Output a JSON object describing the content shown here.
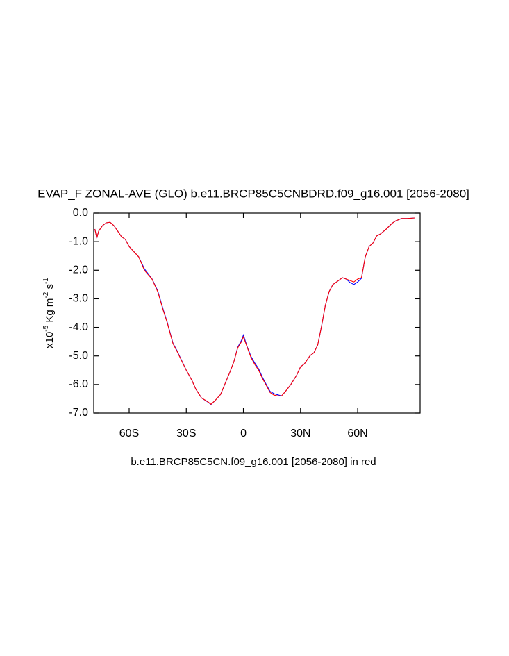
{
  "chart_data": {
    "type": "line",
    "title": "EVAP_F ZONAL-AVE (GLO) b.e11.BRCP85C5CNBDRD.f09_g16.001 [2056-2080]",
    "ylabel_parts": [
      "x10",
      "-5",
      " Kg m",
      "-2",
      " s",
      "-1"
    ],
    "footnote": "b.e11.BRCP85C5CN.f09_g16.001 [2056-2080] in red",
    "xlim": [
      -78.6,
      92.8
    ],
    "xticks": [
      {
        "value": -60,
        "label": "60S"
      },
      {
        "value": -30,
        "label": "30S"
      },
      {
        "value": 0,
        "label": "0"
      },
      {
        "value": 30,
        "label": "30N"
      },
      {
        "value": 60,
        "label": "60N"
      }
    ],
    "ylim": [
      -7,
      0
    ],
    "yticks": [
      {
        "value": 0,
        "label": "0.0"
      },
      {
        "value": -1,
        "label": "-1.0"
      },
      {
        "value": -2,
        "label": "-2.0"
      },
      {
        "value": -3,
        "label": "-3.0"
      },
      {
        "value": -4,
        "label": "-4.0"
      },
      {
        "value": -5,
        "label": "-5.0"
      },
      {
        "value": -6,
        "label": "-6.0"
      },
      {
        "value": -7,
        "label": "-7.0"
      }
    ],
    "x": [
      -78,
      -77,
      -76,
      -74,
      -72,
      -70,
      -68,
      -66,
      -64,
      -62,
      -60,
      -55,
      -52,
      -48,
      -45,
      -42,
      -40,
      -37,
      -35,
      -32,
      -30,
      -27,
      -25,
      -22,
      -19,
      -17,
      -15,
      -12,
      -10,
      -7,
      -5,
      -3,
      -1,
      0,
      2,
      4,
      6,
      8,
      10,
      12,
      14,
      16,
      18,
      20,
      22,
      25,
      28,
      30,
      32,
      35,
      37,
      39,
      41,
      43,
      45,
      47,
      50,
      52,
      54,
      56,
      58,
      60,
      62,
      63,
      64,
      66,
      68,
      70,
      72,
      75,
      78,
      80,
      83,
      86,
      90
    ],
    "series": [
      {
        "color": "#0000ff",
        "values": [
          -0.56,
          -0.88,
          -0.63,
          -0.44,
          -0.34,
          -0.32,
          -0.44,
          -0.63,
          -0.83,
          -0.92,
          -1.17,
          -1.53,
          -1.95,
          -2.3,
          -2.72,
          -3.4,
          -3.82,
          -4.55,
          -4.8,
          -5.22,
          -5.5,
          -5.86,
          -6.16,
          -6.47,
          -6.6,
          -6.7,
          -6.57,
          -6.35,
          -6.03,
          -5.55,
          -5.2,
          -4.7,
          -4.45,
          -4.27,
          -4.68,
          -5.02,
          -5.25,
          -5.45,
          -5.75,
          -6.0,
          -6.24,
          -6.32,
          -6.36,
          -6.4,
          -6.25,
          -5.99,
          -5.67,
          -5.38,
          -5.28,
          -4.99,
          -4.89,
          -4.62,
          -3.97,
          -3.24,
          -2.75,
          -2.5,
          -2.36,
          -2.26,
          -2.31,
          -2.43,
          -2.5,
          -2.41,
          -2.28,
          -1.9,
          -1.53,
          -1.17,
          -1.05,
          -0.8,
          -0.73,
          -0.56,
          -0.36,
          -0.27,
          -0.19,
          -0.19,
          -0.17
        ]
      },
      {
        "color": "#ff0000",
        "values": [
          -0.56,
          -0.88,
          -0.63,
          -0.44,
          -0.34,
          -0.32,
          -0.44,
          -0.63,
          -0.83,
          -0.92,
          -1.17,
          -1.53,
          -2.0,
          -2.31,
          -2.75,
          -3.43,
          -3.84,
          -4.57,
          -4.82,
          -5.23,
          -5.5,
          -5.86,
          -6.16,
          -6.47,
          -6.59,
          -6.69,
          -6.57,
          -6.35,
          -6.03,
          -5.55,
          -5.2,
          -4.72,
          -4.5,
          -4.33,
          -4.7,
          -5.06,
          -5.3,
          -5.5,
          -5.79,
          -6.03,
          -6.28,
          -6.37,
          -6.4,
          -6.4,
          -6.25,
          -5.99,
          -5.67,
          -5.38,
          -5.28,
          -4.99,
          -4.89,
          -4.62,
          -3.97,
          -3.24,
          -2.75,
          -2.5,
          -2.36,
          -2.26,
          -2.31,
          -2.36,
          -2.41,
          -2.31,
          -2.26,
          -1.9,
          -1.53,
          -1.17,
          -1.05,
          -0.8,
          -0.73,
          -0.56,
          -0.36,
          -0.27,
          -0.19,
          -0.19,
          -0.17
        ]
      }
    ]
  }
}
